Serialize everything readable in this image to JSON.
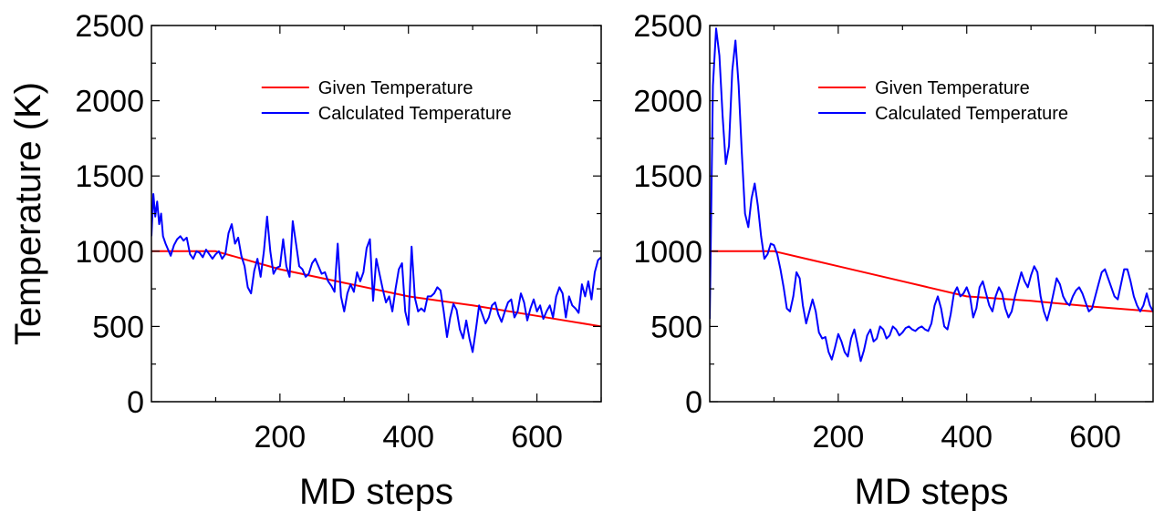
{
  "chart_data": [
    {
      "type": "line",
      "title": "",
      "xlabel": "MD steps",
      "ylabel": "Temperature (K)",
      "xlim": [
        0,
        700
      ],
      "ylim": [
        0,
        2500
      ],
      "xticks": [
        200,
        400,
        600
      ],
      "yticks": [
        0,
        500,
        1000,
        1500,
        2000,
        2500
      ],
      "grid": false,
      "legend_position": "top-right",
      "series": [
        {
          "name": "Given Temperature",
          "color": "#ff0000",
          "x": [
            0,
            100,
            200,
            300,
            400,
            500,
            600,
            700
          ],
          "y": [
            1000,
            1000,
            880,
            790,
            700,
            640,
            570,
            500
          ]
        },
        {
          "name": "Calculated Temperature",
          "color": "#0000ff",
          "x": [
            0,
            3,
            6,
            9,
            12,
            15,
            18,
            22,
            26,
            30,
            35,
            40,
            45,
            50,
            55,
            60,
            65,
            70,
            75,
            80,
            85,
            90,
            95,
            100,
            105,
            110,
            115,
            120,
            125,
            130,
            135,
            140,
            145,
            150,
            155,
            160,
            165,
            170,
            175,
            180,
            185,
            190,
            195,
            200,
            205,
            210,
            215,
            220,
            225,
            230,
            235,
            240,
            245,
            250,
            255,
            260,
            265,
            270,
            275,
            280,
            285,
            290,
            295,
            300,
            305,
            310,
            315,
            320,
            325,
            330,
            335,
            340,
            345,
            350,
            355,
            360,
            365,
            370,
            375,
            380,
            385,
            390,
            395,
            400,
            405,
            410,
            415,
            420,
            425,
            430,
            435,
            440,
            445,
            450,
            455,
            460,
            465,
            470,
            475,
            480,
            485,
            490,
            495,
            500,
            505,
            510,
            515,
            520,
            525,
            530,
            535,
            540,
            545,
            550,
            555,
            560,
            565,
            570,
            575,
            580,
            585,
            590,
            595,
            600,
            605,
            610,
            615,
            620,
            625,
            630,
            635,
            640,
            645,
            650,
            655,
            660,
            665,
            670,
            675,
            680,
            685,
            690,
            695,
            700
          ],
          "y": [
            1100,
            1380,
            1230,
            1330,
            1180,
            1250,
            1100,
            1050,
            1010,
            970,
            1040,
            1080,
            1100,
            1070,
            1090,
            980,
            950,
            1000,
            990,
            960,
            1010,
            980,
            950,
            980,
            1000,
            950,
            980,
            1120,
            1180,
            1050,
            1090,
            970,
            900,
            760,
            720,
            870,
            950,
            830,
            1000,
            1230,
            1000,
            850,
            890,
            900,
            1080,
            900,
            830,
            1200,
            1050,
            900,
            880,
            830,
            850,
            920,
            950,
            900,
            850,
            860,
            800,
            770,
            730,
            1050,
            700,
            600,
            720,
            780,
            730,
            860,
            800,
            860,
            1020,
            1080,
            670,
            950,
            850,
            750,
            660,
            700,
            600,
            750,
            880,
            920,
            600,
            510,
            1030,
            690,
            600,
            620,
            600,
            700,
            700,
            720,
            760,
            740,
            600,
            430,
            560,
            650,
            610,
            480,
            420,
            540,
            420,
            330,
            480,
            640,
            580,
            520,
            560,
            640,
            660,
            580,
            530,
            600,
            660,
            680,
            560,
            600,
            720,
            660,
            540,
            620,
            680,
            600,
            640,
            550,
            600,
            640,
            560,
            700,
            760,
            720,
            560,
            700,
            640,
            620,
            590,
            780,
            700,
            800,
            680,
            860,
            940,
            960
          ]
        }
      ]
    },
    {
      "type": "line",
      "title": "",
      "xlabel": "MD steps",
      "ylabel": "",
      "xlim": [
        0,
        690
      ],
      "ylim": [
        0,
        2500
      ],
      "xticks": [
        200,
        400,
        600
      ],
      "yticks": [
        0,
        500,
        1000,
        1500,
        2000,
        2500
      ],
      "grid": false,
      "legend_position": "top-right",
      "series": [
        {
          "name": "Given Temperature",
          "color": "#ff0000",
          "x": [
            0,
            100,
            200,
            300,
            400,
            500,
            600,
            690
          ],
          "y": [
            1000,
            1000,
            900,
            800,
            700,
            670,
            630,
            600
          ]
        },
        {
          "name": "Calculated Temperature",
          "color": "#0000ff",
          "x": [
            0,
            5,
            10,
            15,
            20,
            25,
            30,
            35,
            40,
            45,
            50,
            55,
            60,
            65,
            70,
            75,
            80,
            85,
            90,
            95,
            100,
            105,
            110,
            115,
            120,
            125,
            130,
            135,
            140,
            145,
            150,
            155,
            160,
            165,
            170,
            175,
            180,
            185,
            190,
            195,
            200,
            205,
            210,
            215,
            220,
            225,
            230,
            235,
            240,
            245,
            250,
            255,
            260,
            265,
            270,
            275,
            280,
            285,
            290,
            295,
            300,
            305,
            310,
            315,
            320,
            325,
            330,
            335,
            340,
            345,
            350,
            355,
            360,
            365,
            370,
            375,
            380,
            385,
            390,
            395,
            400,
            405,
            410,
            415,
            420,
            425,
            430,
            435,
            440,
            445,
            450,
            455,
            460,
            465,
            470,
            475,
            480,
            485,
            490,
            495,
            500,
            505,
            510,
            515,
            520,
            525,
            530,
            535,
            540,
            545,
            550,
            555,
            560,
            565,
            570,
            575,
            580,
            585,
            590,
            595,
            600,
            605,
            610,
            615,
            620,
            625,
            630,
            635,
            640,
            645,
            650,
            655,
            660,
            665,
            670,
            675,
            680,
            685,
            690
          ],
          "y": [
            550,
            2100,
            2480,
            2300,
            1900,
            1580,
            1700,
            2200,
            2400,
            2100,
            1650,
            1250,
            1160,
            1350,
            1450,
            1300,
            1100,
            950,
            980,
            1050,
            1040,
            980,
            880,
            760,
            620,
            600,
            700,
            860,
            820,
            640,
            520,
            600,
            680,
            600,
            460,
            420,
            430,
            330,
            280,
            360,
            450,
            400,
            330,
            300,
            420,
            480,
            380,
            270,
            340,
            440,
            480,
            400,
            420,
            500,
            480,
            420,
            440,
            500,
            480,
            440,
            460,
            490,
            500,
            480,
            470,
            490,
            500,
            480,
            470,
            520,
            640,
            700,
            620,
            500,
            480,
            580,
            720,
            760,
            700,
            720,
            760,
            700,
            560,
            620,
            760,
            800,
            720,
            640,
            600,
            700,
            760,
            720,
            620,
            560,
            600,
            700,
            780,
            860,
            800,
            760,
            840,
            900,
            860,
            700,
            600,
            540,
            620,
            720,
            820,
            780,
            700,
            660,
            640,
            700,
            740,
            760,
            720,
            660,
            600,
            620,
            700,
            780,
            860,
            880,
            820,
            760,
            700,
            680,
            780,
            880,
            880,
            800,
            700,
            640,
            600,
            640,
            720,
            640,
            600
          ]
        }
      ]
    }
  ]
}
